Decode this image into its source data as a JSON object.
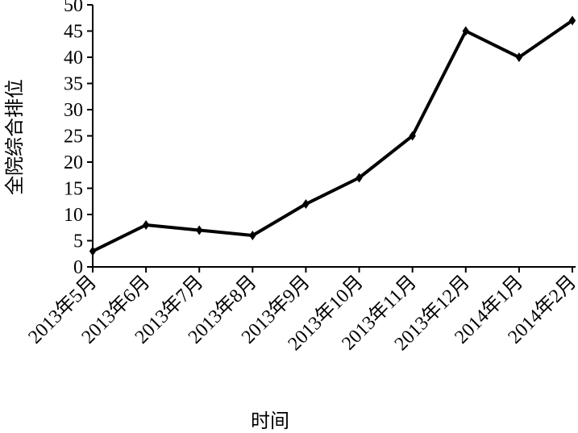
{
  "chart_data": {
    "type": "line",
    "x_label": "时间",
    "y_label": "全院综合排位",
    "categories": [
      "2013年5月",
      "2013年6月",
      "2013年7月",
      "2013年8月",
      "2013年9月",
      "2013年10月",
      "2013年11月",
      "2013年12月",
      "2014年1月",
      "2014年2月"
    ],
    "values": [
      3,
      8,
      7,
      6,
      12,
      17,
      25,
      45,
      40,
      47
    ],
    "color": "#000000",
    "ylim": [
      0,
      50
    ],
    "yticks": [
      0,
      5,
      10,
      15,
      20,
      25,
      30,
      35,
      40,
      45,
      50
    ],
    "grid": false
  }
}
